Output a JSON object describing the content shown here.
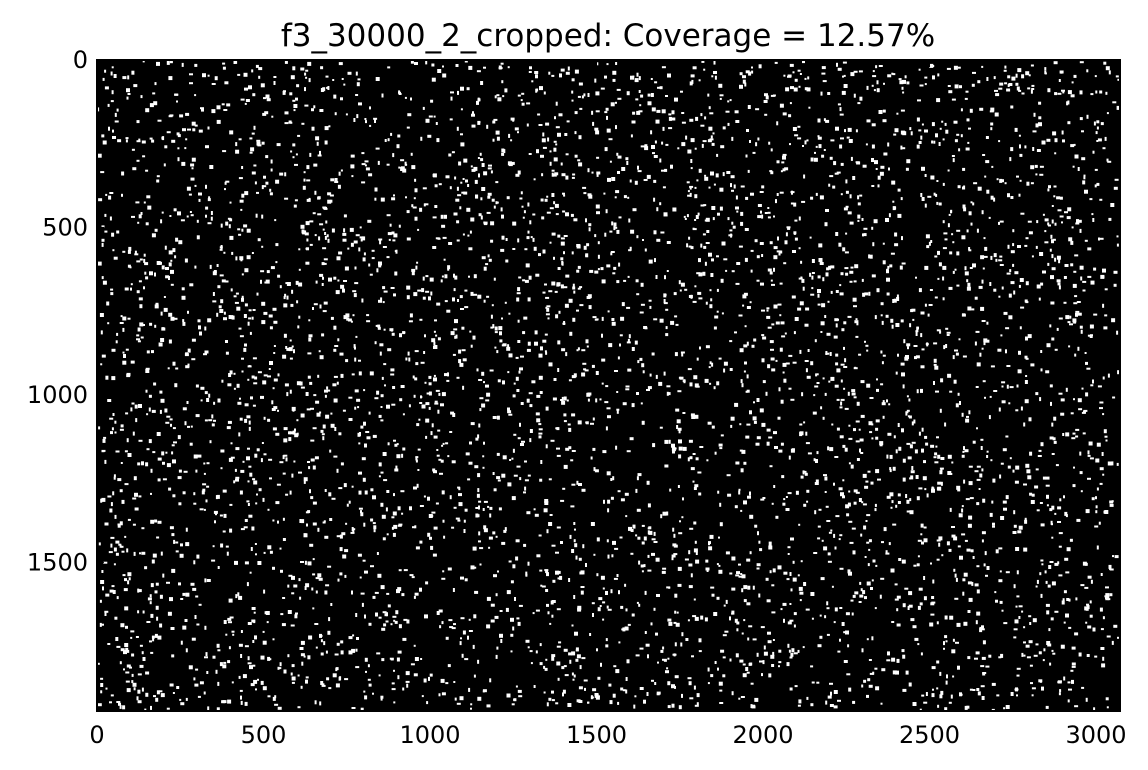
{
  "chart_data": {
    "type": "heatmap",
    "title": "f3_30000_2_cropped: Coverage = 12.57%",
    "xlabel": "",
    "ylabel": "",
    "xlim": [
      0,
      3072
    ],
    "ylim": [
      1944,
      0
    ],
    "x_ticks": [
      {
        "value": 0,
        "label": "0"
      },
      {
        "value": 500,
        "label": "500"
      },
      {
        "value": 1000,
        "label": "1000"
      },
      {
        "value": 1500,
        "label": "1500"
      },
      {
        "value": 2000,
        "label": "2000"
      },
      {
        "value": 2500,
        "label": "2500"
      },
      {
        "value": 3000,
        "label": "3000"
      }
    ],
    "y_ticks": [
      {
        "value": 0,
        "label": "0"
      },
      {
        "value": 500,
        "label": "500"
      },
      {
        "value": 1000,
        "label": "1000"
      },
      {
        "value": 1500,
        "label": "1500"
      }
    ],
    "coverage_percent": 12.57,
    "colormap": {
      "background": "#000000",
      "foreground": "#ffffff"
    },
    "grid": false,
    "legend": "none"
  }
}
